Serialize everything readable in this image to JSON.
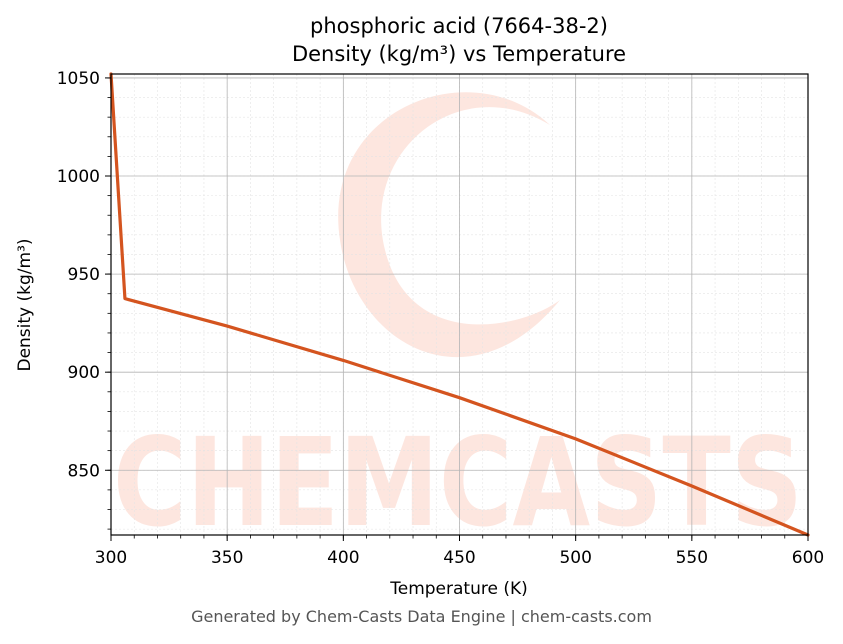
{
  "chart_data": {
    "type": "line",
    "title_line1": "phosphoric acid (7664-38-2)",
    "title_line2": "Density (kg/m³) vs Temperature",
    "xlabel": "Temperature (K)",
    "ylabel": "Density (kg/m³)",
    "xlim": [
      300,
      600
    ],
    "ylim": [
      817,
      1052
    ],
    "xticks": [
      300,
      350,
      400,
      450,
      500,
      550,
      600
    ],
    "yticks": [
      850,
      900,
      950,
      1000,
      1050
    ],
    "grid": true,
    "series": [
      {
        "color": "#d4541f",
        "x": [
          300,
          306,
          350,
          400,
          450,
          500,
          550,
          600
        ],
        "y": [
          1052,
          937.5,
          923.5,
          906,
          887,
          866,
          842,
          817
        ]
      }
    ]
  },
  "watermark": {
    "text": "CHEMCASTS",
    "color": "#fde3dc"
  },
  "footer": {
    "text": "Generated by Chem-Casts Data Engine | chem-casts.com"
  }
}
